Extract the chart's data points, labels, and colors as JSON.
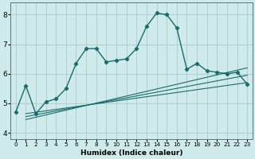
{
  "xlabel": "Humidex (Indice chaleur)",
  "xlim": [
    -0.5,
    23.5
  ],
  "ylim": [
    3.8,
    8.4
  ],
  "xticks": [
    0,
    1,
    2,
    3,
    4,
    5,
    6,
    7,
    8,
    9,
    10,
    11,
    12,
    13,
    14,
    15,
    16,
    17,
    18,
    19,
    20,
    21,
    22,
    23
  ],
  "yticks": [
    4,
    5,
    6,
    7,
    8
  ],
  "bg_color": "#ceeaea",
  "grid_color": "#b0c8c8",
  "line_color": "#1a6b6b",
  "main_x": [
    0,
    1,
    2,
    3,
    4,
    5,
    6,
    7,
    8,
    9,
    10,
    11,
    12,
    13,
    14,
    15,
    16,
    17,
    18,
    19,
    20,
    21,
    22,
    23
  ],
  "main_y": [
    4.7,
    5.6,
    4.65,
    5.05,
    5.15,
    5.5,
    6.35,
    6.85,
    6.85,
    6.4,
    6.45,
    6.5,
    6.85,
    7.6,
    8.05,
    8.0,
    7.55,
    6.15,
    6.35,
    6.1,
    6.05,
    6.0,
    6.05,
    5.65
  ],
  "line2_x": [
    1,
    23
  ],
  "line2_y": [
    4.65,
    5.7
  ],
  "line3_x": [
    1,
    23
  ],
  "line3_y": [
    4.55,
    5.95
  ],
  "line4_x": [
    1,
    23
  ],
  "line4_y": [
    4.45,
    6.2
  ],
  "xlabel_fontsize": 6.5,
  "tick_fontsize_x": 5.2,
  "tick_fontsize_y": 6.5
}
